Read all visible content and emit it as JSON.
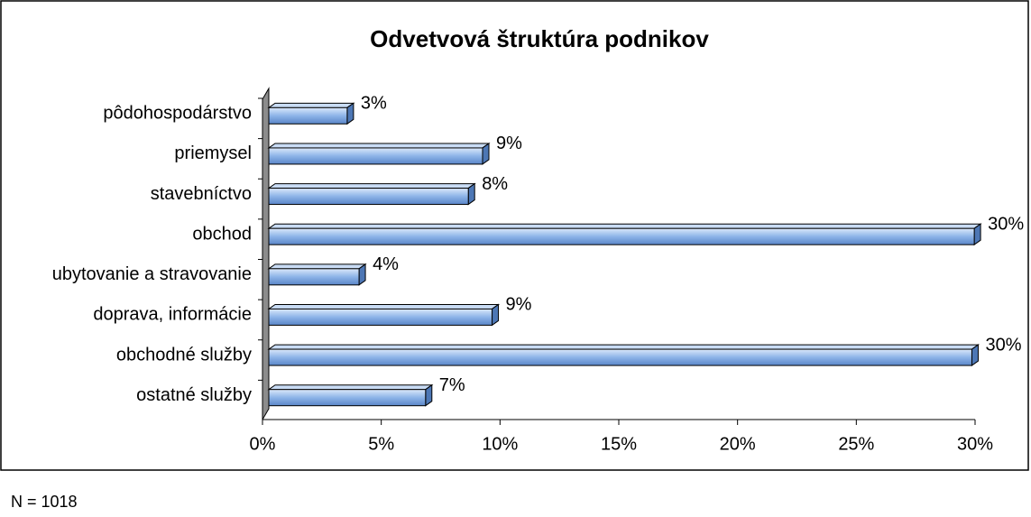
{
  "chart_data": {
    "type": "bar",
    "orientation": "horizontal",
    "title": "Odvetvová štruktúra podnikov",
    "categories": [
      "pôdohospodárstvo",
      "priemysel",
      "stavebníctvo",
      "obchod",
      "ubytovanie a stravovanie",
      "doprava, informácie",
      "obchodné služby",
      "ostatné služby"
    ],
    "values": [
      3.3,
      9.0,
      8.4,
      29.7,
      3.8,
      9.4,
      29.6,
      6.6
    ],
    "value_labels": [
      "3%",
      "9%",
      "8%",
      "30%",
      "4%",
      "9%",
      "30%",
      "7%"
    ],
    "color": "#8db4e8",
    "xlim": [
      0,
      30
    ],
    "xticks": [
      {
        "value": 0,
        "label": "0%"
      },
      {
        "value": 5,
        "label": "5%"
      },
      {
        "value": 10,
        "label": "10%"
      },
      {
        "value": 15,
        "label": "15%"
      },
      {
        "value": 20,
        "label": "20%"
      },
      {
        "value": 25,
        "label": "25%"
      },
      {
        "value": 30,
        "label": "30%"
      }
    ],
    "note": "N = 1018"
  }
}
